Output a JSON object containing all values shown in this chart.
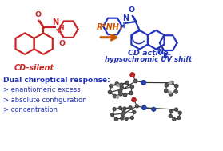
{
  "bg_color": "#ffffff",
  "red": "#cc2222",
  "blue": "#2233bb",
  "orange": "#cc5500",
  "dark": "#222222",
  "gray": "#555555",
  "light_gray": "#aaaaaa",
  "figsize": [
    2.79,
    1.89
  ],
  "dpi": 100,
  "label_cd_silent": "CD-silent",
  "label_cd_active1": "CD active",
  "label_cd_active2": "hypsochromic UV shift",
  "arrow_label": "R*NH₂",
  "rstar": "R*",
  "text_lines": [
    "Dual chiroptical response:",
    "> enantiomeric excess",
    "> absolute configuration",
    "> concentration"
  ]
}
